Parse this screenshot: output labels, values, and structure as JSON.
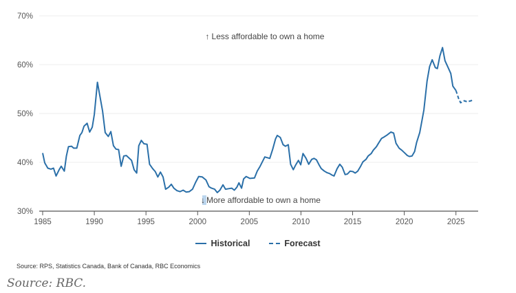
{
  "chart_data": {
    "type": "line",
    "title": "",
    "xlabel": "",
    "ylabel": "",
    "xlim": [
      1985,
      2027
    ],
    "ylim": [
      30,
      70
    ],
    "x_ticks": [
      1985,
      1990,
      1995,
      2000,
      2005,
      2010,
      2015,
      2020,
      2025
    ],
    "y_ticks": [
      30,
      40,
      50,
      60,
      70
    ],
    "y_tick_labels": [
      "30%",
      "40%",
      "50%",
      "60%",
      "70%"
    ],
    "grid": "horizontal",
    "legend_placement": "bottom-center",
    "annotations": {
      "top": "Less affordable to own a home",
      "bottom": "More affordable to own a home"
    },
    "series": [
      {
        "name": "Historical",
        "style": "solid",
        "color": "#2a6fa8",
        "x": [
          1985.0,
          1985.2,
          1985.5,
          1985.8,
          1986.05,
          1986.3,
          1986.6,
          1986.8,
          1987.1,
          1987.3,
          1987.5,
          1987.8,
          1988.0,
          1988.3,
          1988.6,
          1988.8,
          1989.0,
          1989.3,
          1989.55,
          1989.8,
          1990.0,
          1990.3,
          1990.55,
          1990.8,
          1991.05,
          1991.35,
          1991.6,
          1991.85,
          1992.1,
          1992.35,
          1992.6,
          1992.85,
          1993.1,
          1993.35,
          1993.6,
          1993.85,
          1994.1,
          1994.3,
          1994.55,
          1994.8,
          1995.1,
          1995.35,
          1995.65,
          1995.9,
          1996.15,
          1996.4,
          1996.65,
          1996.9,
          1997.2,
          1997.45,
          1997.7,
          1998.0,
          1998.3,
          1998.6,
          1998.9,
          1999.2,
          1999.5,
          1999.8,
          2000.1,
          2000.45,
          2000.8,
          2001.1,
          2001.35,
          2001.65,
          2001.9,
          2002.15,
          2002.45,
          2002.7,
          2003.0,
          2003.3,
          2003.55,
          2003.8,
          2004.0,
          2004.25,
          2004.45,
          2004.7,
          2005.05,
          2005.5,
          2005.77,
          2006.05,
          2006.5,
          2006.98,
          2007.27,
          2007.54,
          2007.71,
          2008.0,
          2008.27,
          2008.5,
          2008.77,
          2009.0,
          2009.26,
          2009.5,
          2009.76,
          2009.98,
          2010.2,
          2010.5,
          2010.75,
          2011.04,
          2011.26,
          2011.5,
          2011.75,
          2011.97,
          2012.27,
          2012.5,
          2012.77,
          2013.0,
          2013.2,
          2013.5,
          2013.76,
          2014.0,
          2014.27,
          2014.5,
          2014.76,
          2015.03,
          2015.25,
          2015.5,
          2015.75,
          2016.0,
          2016.3,
          2016.5,
          2016.8,
          2017.0,
          2017.3,
          2017.5,
          2017.8,
          2018.05,
          2018.35,
          2018.7,
          2018.97,
          2019.2,
          2019.5,
          2019.75,
          2020.0,
          2020.3,
          2020.5,
          2020.75,
          2021.0,
          2021.2,
          2021.5,
          2021.7,
          2021.9,
          2022.2,
          2022.45,
          2022.7,
          2023.0,
          2023.2,
          2023.45,
          2023.7,
          2023.94,
          2024.2,
          2024.5,
          2024.7,
          2025.0
        ],
        "values": [
          41.9,
          39.9,
          38.8,
          38.6,
          38.8,
          37.2,
          38.5,
          39.2,
          38.2,
          41.3,
          43.2,
          43.3,
          42.9,
          42.9,
          45.5,
          46.1,
          47.4,
          48.0,
          46.2,
          47.2,
          49.8,
          56.4,
          53.5,
          50.5,
          46.1,
          45.3,
          46.3,
          43.4,
          42.7,
          42.6,
          39.2,
          41.3,
          41.4,
          40.9,
          40.4,
          38.5,
          37.8,
          43.4,
          44.5,
          43.8,
          43.7,
          39.6,
          38.7,
          38.1,
          37.0,
          38.0,
          37.0,
          34.5,
          34.9,
          35.5,
          34.7,
          34.2,
          34.0,
          34.3,
          33.9,
          34.0,
          34.5,
          35.9,
          37.1,
          37.0,
          36.4,
          35.0,
          34.7,
          34.5,
          33.8,
          34.3,
          35.4,
          34.5,
          34.6,
          34.7,
          34.3,
          34.9,
          35.8,
          34.7,
          36.6,
          37.1,
          36.7,
          36.8,
          38.2,
          39.2,
          41.1,
          40.8,
          42.7,
          44.8,
          45.5,
          45.1,
          43.6,
          43.3,
          43.6,
          39.6,
          38.5,
          39.5,
          40.4,
          39.5,
          41.8,
          40.8,
          39.6,
          40.6,
          40.8,
          40.5,
          39.5,
          38.7,
          38.2,
          37.9,
          37.7,
          37.4,
          37.2,
          38.7,
          39.6,
          39.0,
          37.5,
          37.6,
          38.2,
          38.1,
          37.8,
          38.2,
          39.1,
          40.1,
          40.6,
          41.3,
          41.8,
          42.5,
          43.2,
          43.9,
          44.9,
          45.2,
          45.6,
          46.2,
          46.0,
          43.9,
          42.9,
          42.5,
          42.0,
          41.4,
          41.2,
          41.3,
          42.2,
          44.1,
          46.1,
          48.4,
          50.7,
          56.6,
          59.6,
          61.0,
          59.4,
          59.2,
          61.8,
          63.5,
          60.8,
          59.6,
          58.2,
          55.6,
          54.7
        ]
      },
      {
        "name": "Forecast",
        "style": "dashed",
        "color": "#2a6fa8",
        "x": [
          2025.0,
          2025.25,
          2025.45,
          2025.8,
          2026.1,
          2026.45,
          2026.75
        ],
        "values": [
          54.7,
          53.1,
          52.2,
          52.6,
          52.4,
          52.6,
          52.8
        ]
      }
    ]
  },
  "legend": {
    "historical": "Historical",
    "forecast": "Forecast"
  },
  "source_note": "Source: RPS, Statistics Canada, Bank of Canada, RBC Economics",
  "credit": "Source: RBC.",
  "arrows": {
    "up": "↑",
    "down": "↓"
  }
}
